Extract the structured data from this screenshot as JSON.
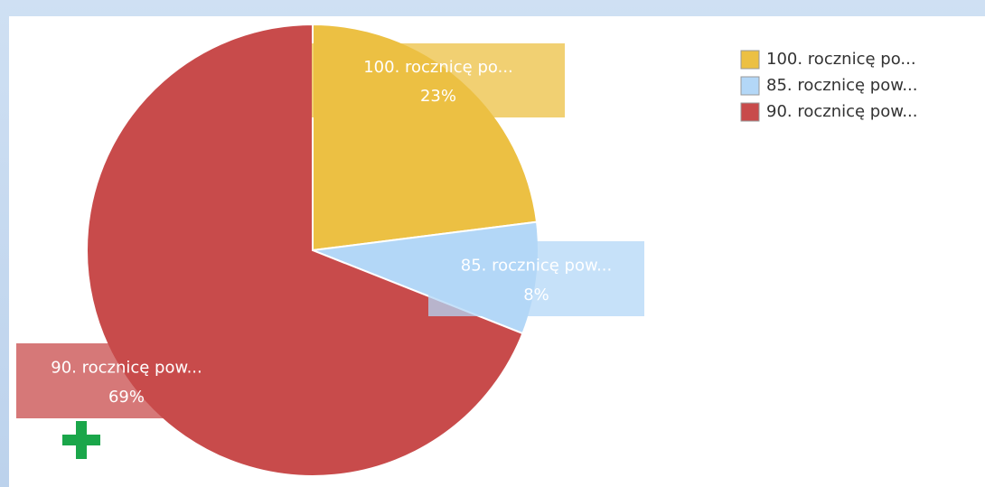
{
  "chart_data": {
    "type": "pie",
    "categories": [
      "100. rocznicę po...",
      "85. rocznicę pow...",
      "90. rocznicę pow..."
    ],
    "values": [
      23,
      8,
      69
    ],
    "value_labels": [
      "23%",
      "8%",
      "69%"
    ],
    "colors": [
      "#ecc043",
      "#b3d7f7",
      "#c84b4b"
    ],
    "legend": "top-right"
  }
}
